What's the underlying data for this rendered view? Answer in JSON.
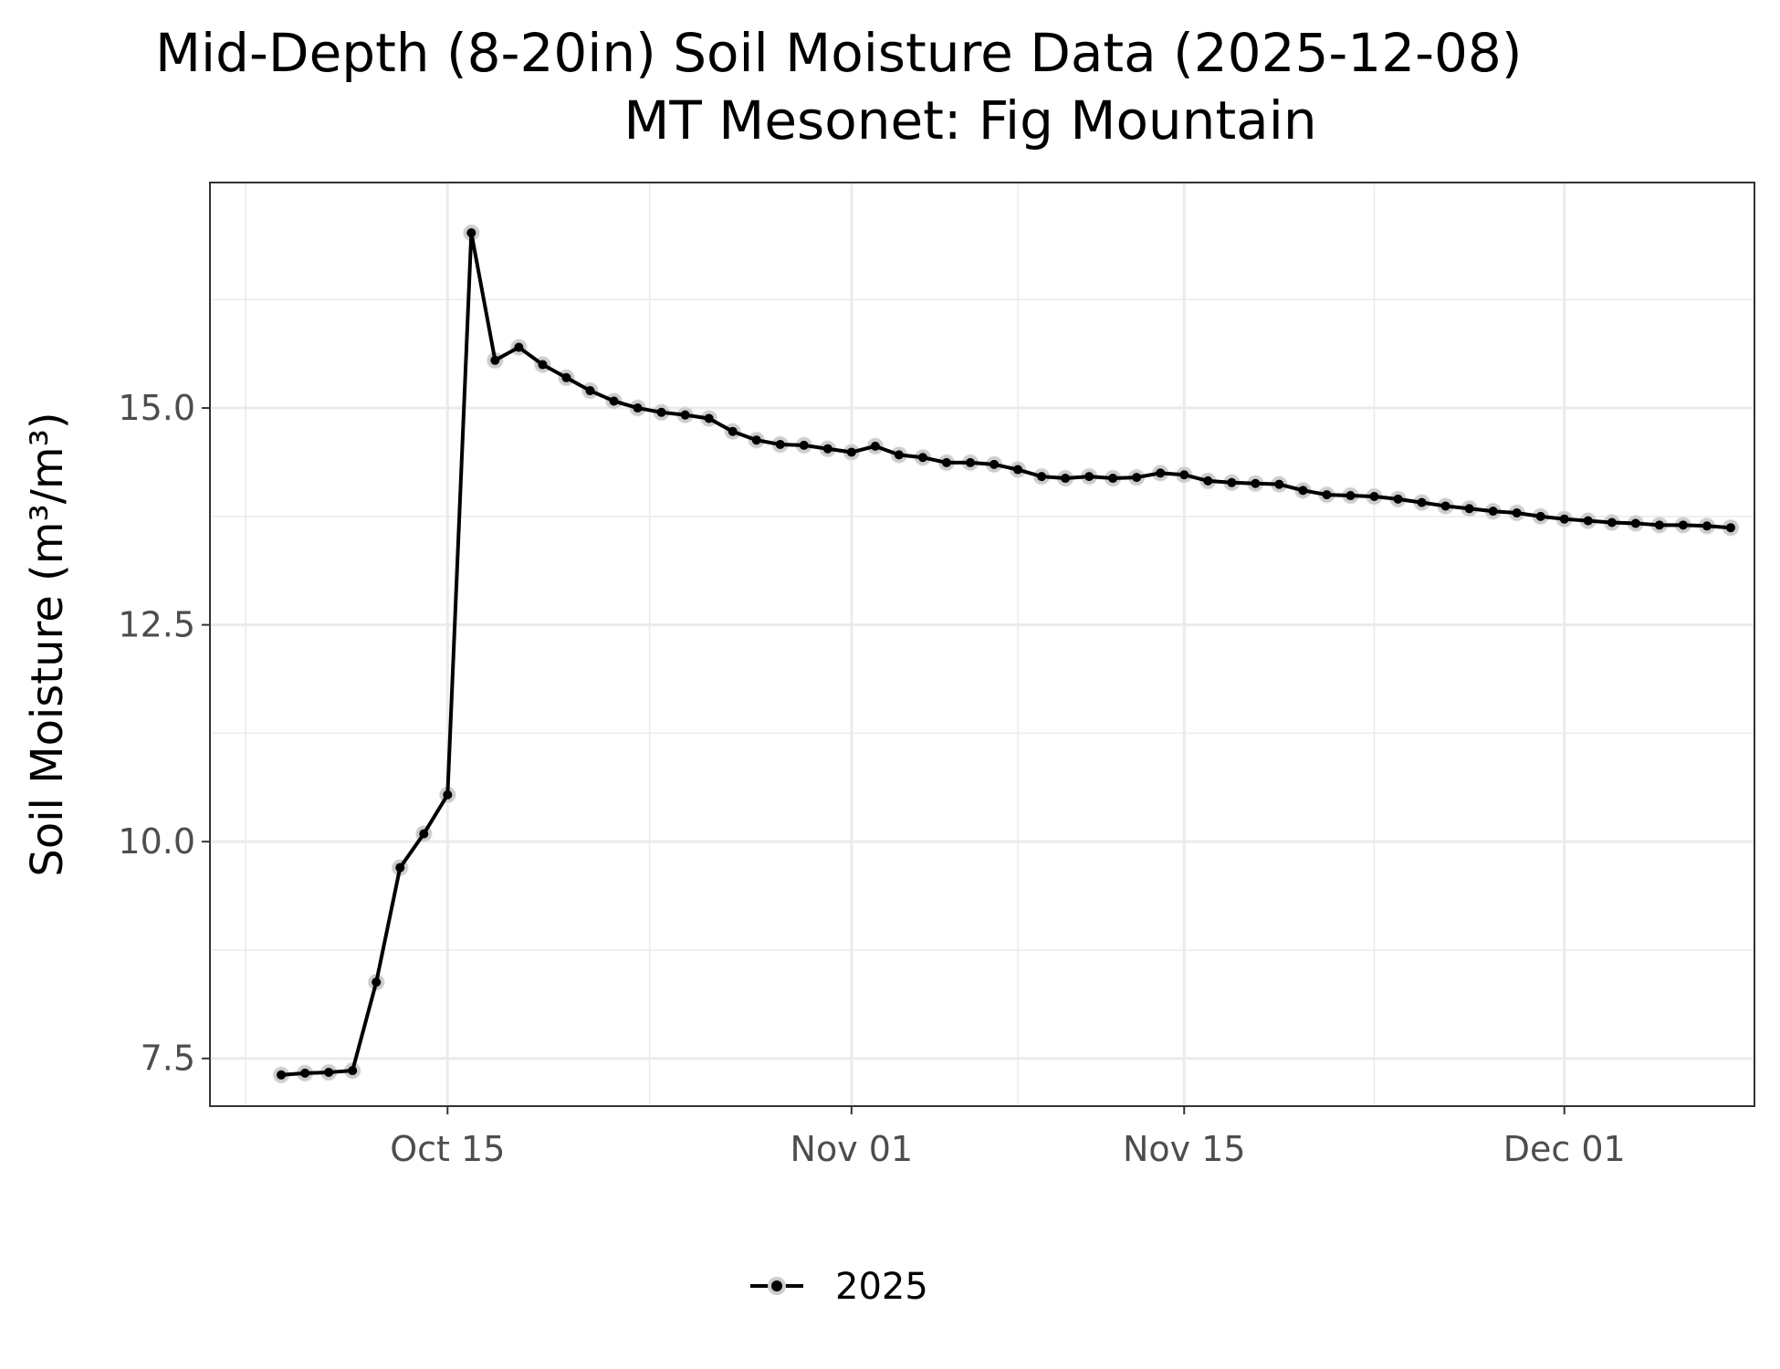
{
  "chart_data": {
    "type": "line",
    "title": "Mid-Depth (8-20in) Soil Moisture Data (2025-12-08)",
    "subtitle": "MT Mesonet: Fig Mountain",
    "xlabel": "",
    "ylabel": "Soil Moisture (m³/m³)",
    "x_axis": {
      "type": "date",
      "range": [
        "2025-10-05",
        "2025-12-09"
      ],
      "ticks": [
        {
          "date": "2025-10-15",
          "label": "Oct 15"
        },
        {
          "date": "2025-11-01",
          "label": "Nov 01"
        },
        {
          "date": "2025-11-15",
          "label": "Nov 15"
        },
        {
          "date": "2025-12-01",
          "label": "Dec 01"
        }
      ]
    },
    "y_axis": {
      "range": [
        6.95,
        17.6
      ],
      "ticks": [
        7.5,
        10.0,
        12.5,
        15.0
      ],
      "tick_labels": [
        "7.5",
        "10.0",
        "12.5",
        "15.0"
      ]
    },
    "grid": true,
    "legend": {
      "position": "bottom",
      "entries": [
        "2025"
      ]
    },
    "colors": {
      "line": "#000000",
      "point_halo": "#cccccc",
      "grid": "#ebebeb",
      "border": "#333333"
    },
    "series": [
      {
        "name": "2025",
        "x": [
          "2025-10-08",
          "2025-10-09",
          "2025-10-10",
          "2025-10-11",
          "2025-10-12",
          "2025-10-13",
          "2025-10-14",
          "2025-10-15",
          "2025-10-16",
          "2025-10-17",
          "2025-10-18",
          "2025-10-19",
          "2025-10-20",
          "2025-10-21",
          "2025-10-22",
          "2025-10-23",
          "2025-10-24",
          "2025-10-25",
          "2025-10-26",
          "2025-10-27",
          "2025-10-28",
          "2025-10-29",
          "2025-10-30",
          "2025-10-31",
          "2025-11-01",
          "2025-11-02",
          "2025-11-03",
          "2025-11-04",
          "2025-11-05",
          "2025-11-06",
          "2025-11-07",
          "2025-11-08",
          "2025-11-09",
          "2025-11-10",
          "2025-11-11",
          "2025-11-12",
          "2025-11-13",
          "2025-11-14",
          "2025-11-15",
          "2025-11-16",
          "2025-11-17",
          "2025-11-18",
          "2025-11-19",
          "2025-11-20",
          "2025-11-21",
          "2025-11-22",
          "2025-11-23",
          "2025-11-24",
          "2025-11-25",
          "2025-11-26",
          "2025-11-27",
          "2025-11-28",
          "2025-11-29",
          "2025-11-30",
          "2025-12-01",
          "2025-12-02",
          "2025-12-03",
          "2025-12-04",
          "2025-12-05",
          "2025-12-06",
          "2025-12-07",
          "2025-12-08"
        ],
        "y": [
          7.31,
          7.33,
          7.34,
          7.36,
          8.38,
          9.7,
          10.09,
          10.54,
          17.02,
          15.55,
          15.7,
          15.5,
          15.35,
          15.2,
          15.08,
          15.0,
          14.95,
          14.92,
          14.88,
          14.73,
          14.63,
          14.58,
          14.57,
          14.53,
          14.49,
          14.56,
          14.46,
          14.43,
          14.37,
          14.37,
          14.35,
          14.29,
          14.21,
          14.19,
          14.21,
          14.19,
          14.2,
          14.25,
          14.23,
          14.16,
          14.14,
          14.13,
          14.12,
          14.05,
          14.0,
          13.99,
          13.98,
          13.95,
          13.91,
          13.87,
          13.84,
          13.81,
          13.79,
          13.75,
          13.72,
          13.7,
          13.68,
          13.67,
          13.65,
          13.65,
          13.64,
          13.62
        ]
      }
    ]
  }
}
